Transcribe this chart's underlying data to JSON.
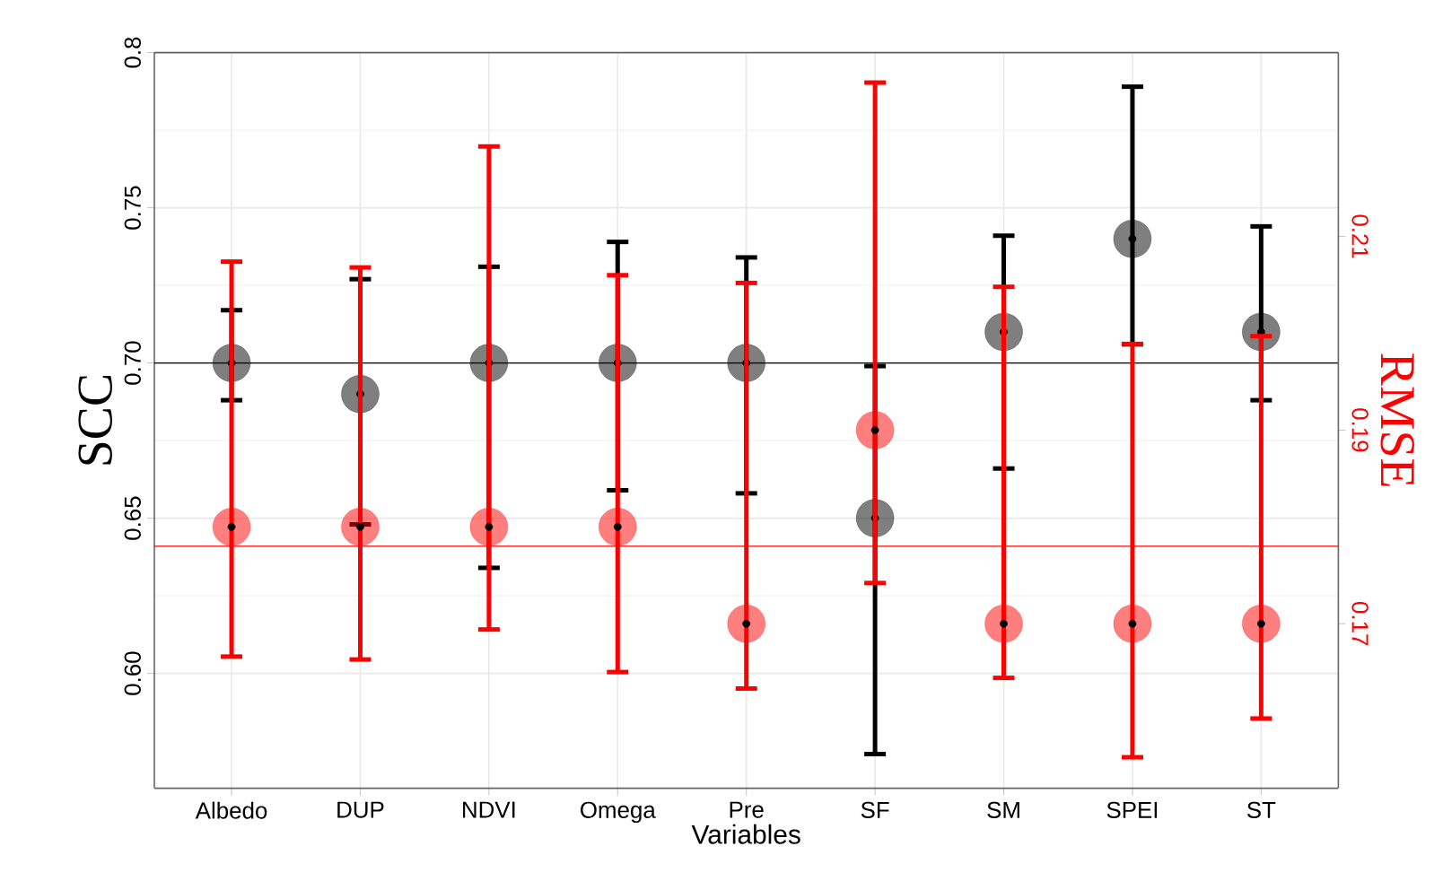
{
  "chart_data": {
    "type": "scatter",
    "categories": [
      "Albedo",
      "DUP",
      "NDVI",
      "Omega",
      "Pre",
      "SF",
      "SM",
      "SPEI",
      "ST"
    ],
    "xlabel": "Variables",
    "ylabel": "SCC",
    "y2label": "RMSE",
    "ylim": [
      0.563,
      0.8
    ],
    "yticks": [
      {
        "value": 0.6,
        "label": "0.60"
      },
      {
        "value": 0.65,
        "label": "0.65"
      },
      {
        "value": 0.7,
        "label": "0.70"
      },
      {
        "value": 0.75,
        "label": "0.75"
      },
      0.8
    ],
    "y2lim": [
      0.153,
      0.229
    ],
    "y2ticks": [
      0.17,
      0.19,
      0.21
    ],
    "grid": true,
    "marker": "circle",
    "series": [
      {
        "color": "#000000",
        "values": [
          0.7,
          0.69,
          0.7,
          0.7,
          0.7,
          0.65,
          0.71,
          0.74,
          0.71
        ],
        "errors": [
          [
            0.688,
            0.717
          ],
          [
            0.648,
            0.727
          ],
          [
            0.634,
            0.731
          ],
          [
            0.659,
            0.739
          ],
          [
            0.658,
            0.734
          ],
          [
            0.574,
            0.699
          ],
          [
            0.666,
            0.741
          ],
          [
            0.706,
            0.789
          ],
          [
            0.688,
            0.744
          ]
        ]
      },
      {
        "color": "#ff0000",
        "axis": "y2",
        "values": [
          0.18,
          0.18,
          0.18,
          0.18,
          0.17,
          0.19,
          0.17,
          0.17,
          0.17
        ],
        "errors": [
          [
            0.1666,
            0.2074
          ],
          [
            0.1663,
            0.2068
          ],
          [
            0.1694,
            0.2193
          ],
          [
            0.165,
            0.206
          ],
          [
            0.1633,
            0.2052
          ],
          [
            0.1742,
            0.2259
          ],
          [
            0.1644,
            0.2048
          ],
          [
            0.1562,
            0.1989
          ],
          [
            0.1602,
            0.1997
          ]
        ]
      }
    ],
    "ref_lines": [
      {
        "axis": "y",
        "value": 0.7,
        "color": "#000000"
      },
      {
        "axis": "y2",
        "value": 0.178,
        "color": "#ff0000"
      }
    ]
  }
}
